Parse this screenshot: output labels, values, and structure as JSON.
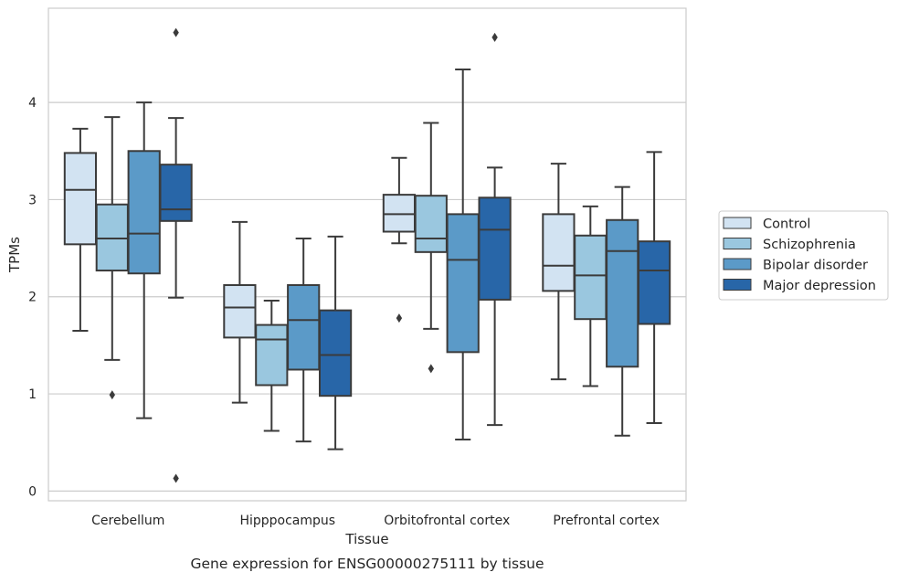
{
  "chart_data": {
    "type": "boxplot",
    "title": "Gene expression for ENSG00000275111 by tissue",
    "xlabel": "Tissue",
    "ylabel": "TPMs",
    "ylim": [
      -0.1,
      4.97
    ],
    "yticks": [
      0,
      1,
      2,
      3,
      4
    ],
    "grid": "horizontal",
    "legend_position": "right",
    "categories": [
      "Cerebellum",
      "Hipppocampus",
      "Orbitofrontal cortex",
      "Prefrontal cortex"
    ],
    "series": [
      {
        "name": "Control",
        "color": "#d2e3f2",
        "boxes": [
          {
            "whisker_low": 1.65,
            "q1": 2.54,
            "median": 3.1,
            "q3": 3.48,
            "whisker_high": 3.73,
            "outliers": []
          },
          {
            "whisker_low": 0.91,
            "q1": 1.58,
            "median": 1.89,
            "q3": 2.12,
            "whisker_high": 2.77,
            "outliers": []
          },
          {
            "whisker_low": 2.55,
            "q1": 2.67,
            "median": 2.85,
            "q3": 3.05,
            "whisker_high": 3.43,
            "outliers": [
              1.78
            ]
          },
          {
            "whisker_low": 1.15,
            "q1": 2.06,
            "median": 2.32,
            "q3": 2.85,
            "whisker_high": 3.37,
            "outliers": []
          }
        ]
      },
      {
        "name": "Schizophrenia",
        "color": "#9ac7df",
        "boxes": [
          {
            "whisker_low": 1.35,
            "q1": 2.27,
            "median": 2.6,
            "q3": 2.95,
            "whisker_high": 3.85,
            "outliers": [
              0.99
            ]
          },
          {
            "whisker_low": 0.62,
            "q1": 1.09,
            "median": 1.56,
            "q3": 1.71,
            "whisker_high": 1.96,
            "outliers": []
          },
          {
            "whisker_low": 1.67,
            "q1": 2.46,
            "median": 2.6,
            "q3": 3.04,
            "whisker_high": 3.79,
            "outliers": [
              1.26
            ]
          },
          {
            "whisker_low": 1.08,
            "q1": 1.77,
            "median": 2.22,
            "q3": 2.63,
            "whisker_high": 2.93,
            "outliers": []
          }
        ]
      },
      {
        "name": "Bipolar disorder",
        "color": "#5b9ac8",
        "boxes": [
          {
            "whisker_low": 0.75,
            "q1": 2.24,
            "median": 2.65,
            "q3": 3.5,
            "whisker_high": 4.0,
            "outliers": []
          },
          {
            "whisker_low": 0.51,
            "q1": 1.25,
            "median": 1.76,
            "q3": 2.12,
            "whisker_high": 2.6,
            "outliers": []
          },
          {
            "whisker_low": 0.53,
            "q1": 1.43,
            "median": 2.38,
            "q3": 2.85,
            "whisker_high": 4.34,
            "outliers": []
          },
          {
            "whisker_low": 0.57,
            "q1": 1.28,
            "median": 2.47,
            "q3": 2.79,
            "whisker_high": 3.13,
            "outliers": []
          }
        ]
      },
      {
        "name": "Major depression",
        "color": "#2866a8",
        "boxes": [
          {
            "whisker_low": 1.99,
            "q1": 2.78,
            "median": 2.9,
            "q3": 3.36,
            "whisker_high": 3.84,
            "outliers": [
              4.72,
              0.13
            ]
          },
          {
            "whisker_low": 0.43,
            "q1": 0.98,
            "median": 1.4,
            "q3": 1.86,
            "whisker_high": 2.62,
            "outliers": []
          },
          {
            "whisker_low": 0.68,
            "q1": 1.97,
            "median": 2.69,
            "q3": 3.02,
            "whisker_high": 3.33,
            "outliers": [
              4.67
            ]
          },
          {
            "whisker_low": 0.7,
            "q1": 1.72,
            "median": 2.27,
            "q3": 2.57,
            "whisker_high": 3.49,
            "outliers": []
          }
        ]
      }
    ]
  }
}
